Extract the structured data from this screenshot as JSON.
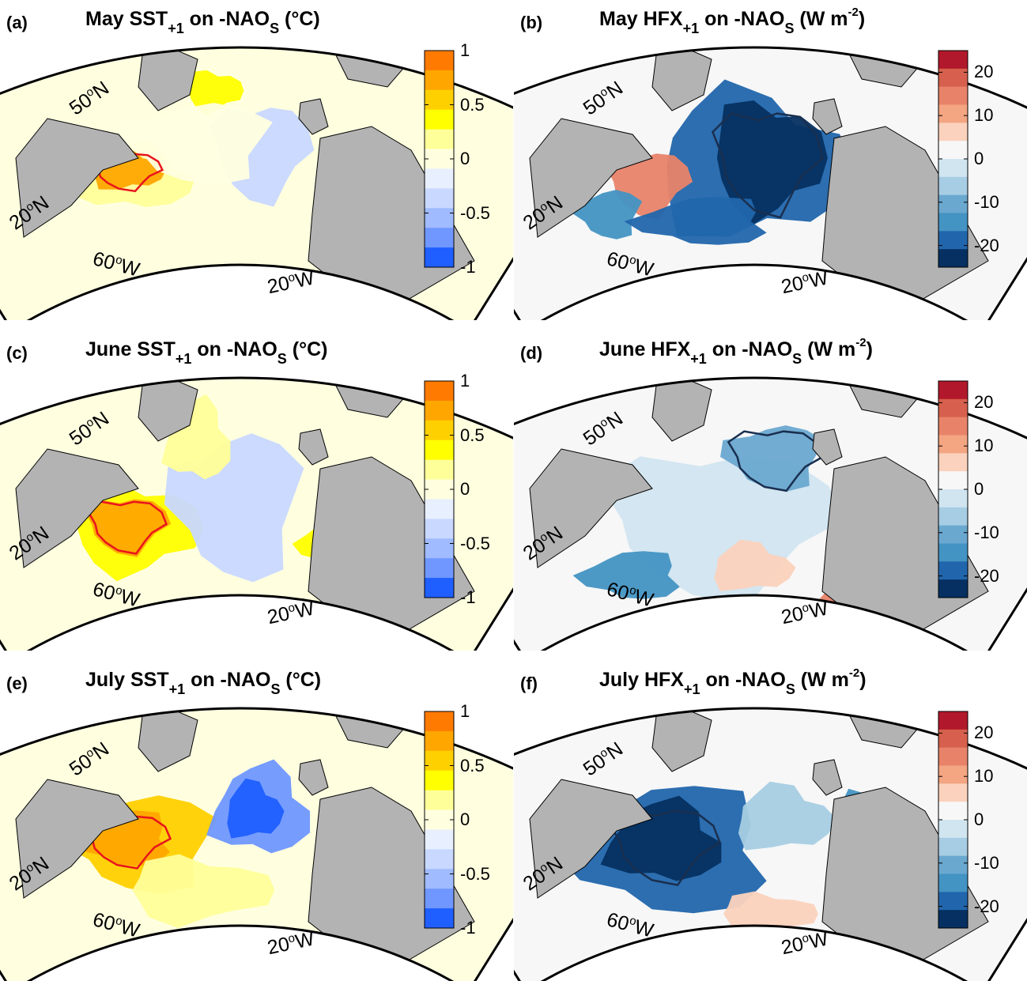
{
  "chart_data": [
    {
      "type": "heatmap",
      "panel_letter": "(a)",
      "title": {
        "month": "May",
        "variable": "SST",
        "lead": "+1",
        "index": "-NAO",
        "index_sub": "S",
        "unit": "(°C)"
      },
      "lat_labels": [
        "50",
        "20"
      ],
      "lon_labels": [
        "60",
        "20"
      ],
      "colorbar": {
        "ticks": [
          "1",
          "0.5",
          "0",
          "-0.5",
          "-1"
        ],
        "range": [
          -1,
          1
        ],
        "colors": [
          "#ff7a00",
          "#ffa600",
          "#ffd000",
          "#ffff00",
          "#ffff99",
          "#ffffe0",
          "#e8efff",
          "#c8d8ff",
          "#a0bbff",
          "#6f97ff",
          "#1f5fff"
        ]
      }
    },
    {
      "type": "heatmap",
      "panel_letter": "(b)",
      "title": {
        "month": "May",
        "variable": "HFX",
        "lead": "+1",
        "index": "-NAO",
        "index_sub": "S",
        "unit_base": "(W m",
        "unit_exp": "-2",
        "unit_close": ")"
      },
      "lat_labels": [
        "50",
        "20"
      ],
      "lon_labels": [
        "60",
        "20"
      ],
      "colorbar": {
        "ticks": [
          "20",
          "10",
          "0",
          "-10",
          "-20"
        ],
        "range": [
          -25,
          25
        ],
        "colors": [
          "#b2182b",
          "#d6604d",
          "#e8836a",
          "#f4a582",
          "#fbd2bd",
          "#f7f7f7",
          "#d1e5f0",
          "#a6cde3",
          "#6aa8d0",
          "#4393c3",
          "#2166ac",
          "#053061"
        ]
      }
    },
    {
      "type": "heatmap",
      "panel_letter": "(c)",
      "title": {
        "month": "June",
        "variable": "SST",
        "lead": "+1",
        "index": "-NAO",
        "index_sub": "S",
        "unit": "(°C)"
      },
      "lat_labels": [
        "50",
        "20"
      ],
      "lon_labels": [
        "60",
        "20"
      ],
      "colorbar": {
        "ticks": [
          "1",
          "0.5",
          "0",
          "-0.5",
          "-1"
        ],
        "range": [
          -1,
          1
        ],
        "colors": [
          "#ff7a00",
          "#ffa600",
          "#ffd000",
          "#ffff00",
          "#ffff99",
          "#ffffe0",
          "#e8efff",
          "#c8d8ff",
          "#a0bbff",
          "#6f97ff",
          "#1f5fff"
        ]
      }
    },
    {
      "type": "heatmap",
      "panel_letter": "(d)",
      "title": {
        "month": "June",
        "variable": "HFX",
        "lead": "+1",
        "index": "-NAO",
        "index_sub": "S",
        "unit_base": "(W m",
        "unit_exp": "-2",
        "unit_close": ")"
      },
      "lat_labels": [
        "50",
        "20"
      ],
      "lon_labels": [
        "60",
        "20"
      ],
      "colorbar": {
        "ticks": [
          "20",
          "10",
          "0",
          "-10",
          "-20"
        ],
        "range": [
          -25,
          25
        ],
        "colors": [
          "#b2182b",
          "#d6604d",
          "#e8836a",
          "#f4a582",
          "#fbd2bd",
          "#f7f7f7",
          "#d1e5f0",
          "#a6cde3",
          "#6aa8d0",
          "#4393c3",
          "#2166ac",
          "#053061"
        ]
      }
    },
    {
      "type": "heatmap",
      "panel_letter": "(e)",
      "title": {
        "month": "July",
        "variable": "SST",
        "lead": "+1",
        "index": "-NAO",
        "index_sub": "S",
        "unit": "(°C)"
      },
      "lat_labels": [
        "50",
        "20"
      ],
      "lon_labels": [
        "60",
        "20"
      ],
      "colorbar": {
        "ticks": [
          "1",
          "0.5",
          "0",
          "-0.5",
          "-1"
        ],
        "range": [
          -1,
          1
        ],
        "colors": [
          "#ff7a00",
          "#ffa600",
          "#ffd000",
          "#ffff00",
          "#ffff99",
          "#ffffe0",
          "#e8efff",
          "#c8d8ff",
          "#a0bbff",
          "#6f97ff",
          "#1f5fff"
        ]
      }
    },
    {
      "type": "heatmap",
      "panel_letter": "(f)",
      "title": {
        "month": "July",
        "variable": "HFX",
        "lead": "+1",
        "index": "-NAO",
        "index_sub": "S",
        "unit_base": "(W m",
        "unit_exp": "-2",
        "unit_close": ")"
      },
      "lat_labels": [
        "50",
        "20"
      ],
      "lon_labels": [
        "60",
        "20"
      ],
      "colorbar": {
        "ticks": [
          "20",
          "10",
          "0",
          "-10",
          "-20"
        ],
        "range": [
          -25,
          25
        ],
        "colors": [
          "#b2182b",
          "#d6604d",
          "#e8836a",
          "#f4a582",
          "#fbd2bd",
          "#f7f7f7",
          "#d1e5f0",
          "#a6cde3",
          "#6aa8d0",
          "#4393c3",
          "#2166ac",
          "#053061"
        ]
      }
    }
  ],
  "colors": {
    "land": "#b3b3b3",
    "frame": "#000000",
    "sig_contour_sst": "#e8141c",
    "sig_contour_hfx": "#1a2f4f"
  }
}
